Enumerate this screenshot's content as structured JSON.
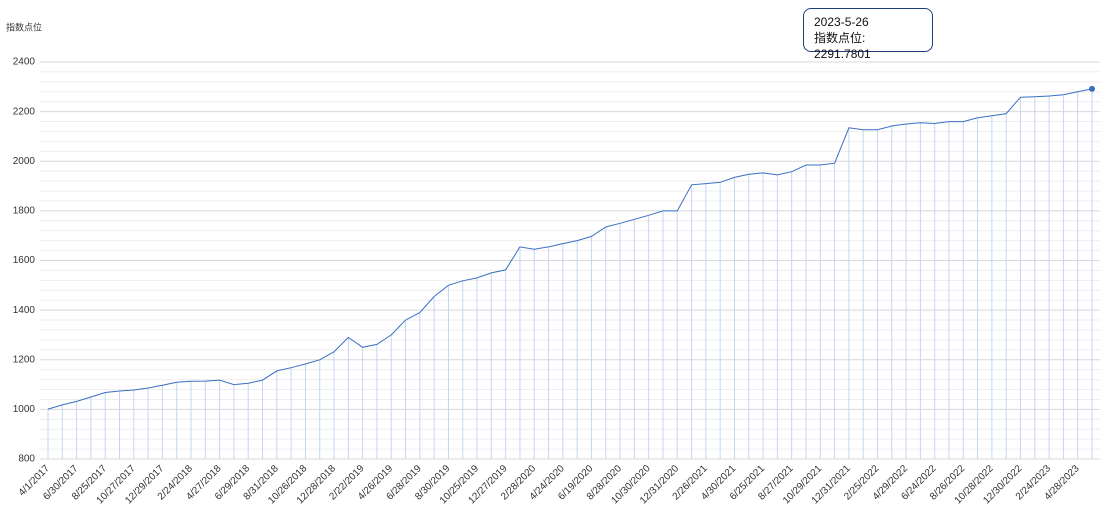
{
  "chart_data": {
    "type": "line",
    "y_axis_label": "指数点位",
    "categories": [
      "4/1/2017",
      null,
      "6/30/2017",
      null,
      "8/25/2017",
      null,
      "10/27/2017",
      null,
      "12/29/2017",
      null,
      "2/24/2018",
      null,
      "4/27/2018",
      null,
      "6/29/2018",
      null,
      "8/31/2018",
      null,
      "10/26/2018",
      null,
      "12/28/2018",
      null,
      "2/22/2019",
      null,
      "4/26/2019",
      null,
      "6/28/2019",
      null,
      "8/30/2019",
      null,
      "10/25/2019",
      null,
      "12/27/2019",
      null,
      "2/28/2020",
      null,
      "4/24/2020",
      null,
      "6/19/2020",
      null,
      "8/28/2020",
      null,
      "10/30/2020",
      null,
      "12/31/2020",
      null,
      "2/26/2021",
      null,
      "4/30/2021",
      null,
      "6/25/2021",
      null,
      "8/27/2021",
      null,
      "10/29/2021",
      null,
      "12/31/2021",
      null,
      "2/25/2022",
      null,
      "4/29/2022",
      null,
      "6/24/2022",
      null,
      "8/26/2022",
      null,
      "10/28/2022",
      null,
      "12/30/2022",
      null,
      "2/24/2023",
      null,
      "4/28/2023",
      null
    ],
    "series": [
      {
        "name": "指数点位",
        "color": "#3a6fc4",
        "values": [
          1001,
          1018,
          1032,
          1050,
          1068,
          1074,
          1078,
          1086,
          1097,
          1109,
          1113,
          1114,
          1118,
          1100,
          1105,
          1118,
          1155,
          1168,
          1183,
          1200,
          1232,
          1290,
          1250,
          1262,
          1300,
          1360,
          1390,
          1455,
          1500,
          1518,
          1530,
          1550,
          1562,
          1655,
          1645,
          1655,
          1668,
          1680,
          1697,
          1735,
          1750,
          1766,
          1782,
          1800,
          1800,
          1905,
          1910,
          1915,
          1935,
          1948,
          1953,
          1945,
          1958,
          1985,
          1985,
          1992,
          2135,
          2127,
          2127,
          2142,
          2150,
          2155,
          2152,
          2160,
          2160,
          2175,
          2183,
          2192,
          2258,
          2260,
          2263,
          2268,
          2280,
          2291.7801
        ]
      }
    ],
    "tooltip": {
      "date": "2023-5-26",
      "text": "指数点位: 2291.7801"
    },
    "ylim": [
      800,
      2400
    ],
    "yticks": [
      800,
      1000,
      1200,
      1400,
      1600,
      1800,
      2000,
      2200,
      2400
    ],
    "grid": true
  }
}
